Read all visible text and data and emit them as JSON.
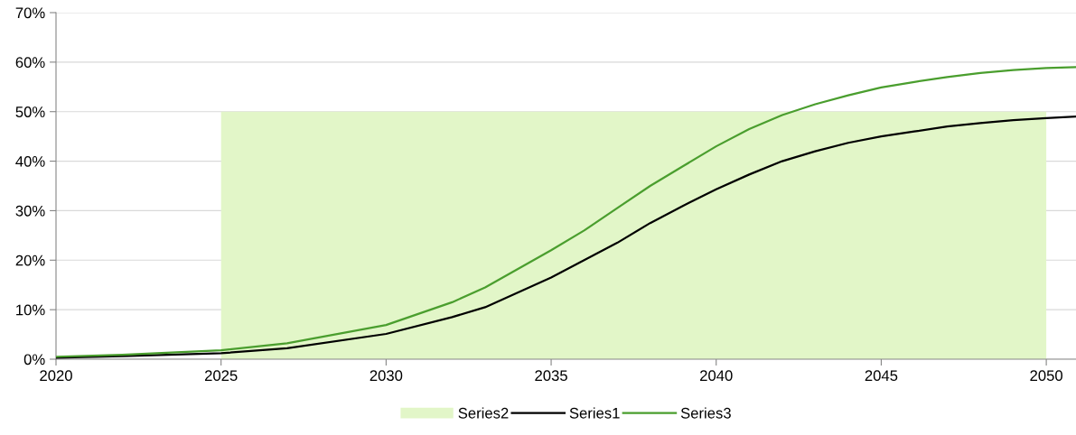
{
  "chart_data": {
    "type": "line",
    "series": [
      {
        "name": "Series2",
        "type": "area",
        "color": "#e2f6c8",
        "x": [
          2025,
          2050
        ],
        "values": [
          50,
          50
        ]
      },
      {
        "name": "Series1",
        "color": "#000000",
        "x": [
          2020,
          2022,
          2025,
          2027,
          2030,
          2032,
          2033,
          2035,
          2036,
          2037,
          2038,
          2039,
          2040,
          2041,
          2042,
          2043,
          2044,
          2045,
          2046,
          2047,
          2048,
          2049,
          2050,
          2050.9
        ],
        "values": [
          0.3,
          0.6,
          1.2,
          2.2,
          5.1,
          8.5,
          10.5,
          16.5,
          20,
          23.5,
          27.5,
          31,
          34.3,
          37.3,
          40,
          42,
          43.7,
          45,
          46,
          47,
          47.7,
          48.3,
          48.7,
          49
        ]
      },
      {
        "name": "Series3",
        "color": "#4a9e2e",
        "x": [
          2020,
          2022,
          2025,
          2027,
          2030,
          2032,
          2033,
          2035,
          2036,
          2037,
          2038,
          2039,
          2040,
          2041,
          2042,
          2043,
          2044,
          2045,
          2046,
          2047,
          2048,
          2049,
          2050,
          2050.9
        ],
        "values": [
          0.5,
          0.9,
          1.8,
          3.2,
          6.9,
          11.5,
          14.5,
          22,
          26,
          30.5,
          35,
          39,
          43,
          46.5,
          49.3,
          51.5,
          53.3,
          54.9,
          56,
          57,
          57.8,
          58.4,
          58.8,
          59
        ]
      }
    ],
    "xlim": [
      2020,
      2050.9
    ],
    "xticks": [
      2020,
      2025,
      2030,
      2035,
      2040,
      2045,
      2050
    ],
    "ylim": [
      0,
      70
    ],
    "yticks": [
      {
        "value": 0,
        "label": "0%"
      },
      {
        "value": 10,
        "label": "10%"
      },
      {
        "value": 20,
        "label": "20%"
      },
      {
        "value": 30,
        "label": "30%"
      },
      {
        "value": 40,
        "label": "40%"
      },
      {
        "value": 50,
        "label": "50%"
      },
      {
        "value": 60,
        "label": "60%"
      },
      {
        "value": 70,
        "label": "70%"
      }
    ],
    "grid": "y",
    "legend": "bottom",
    "marker": "none",
    "line_style": "solid"
  }
}
